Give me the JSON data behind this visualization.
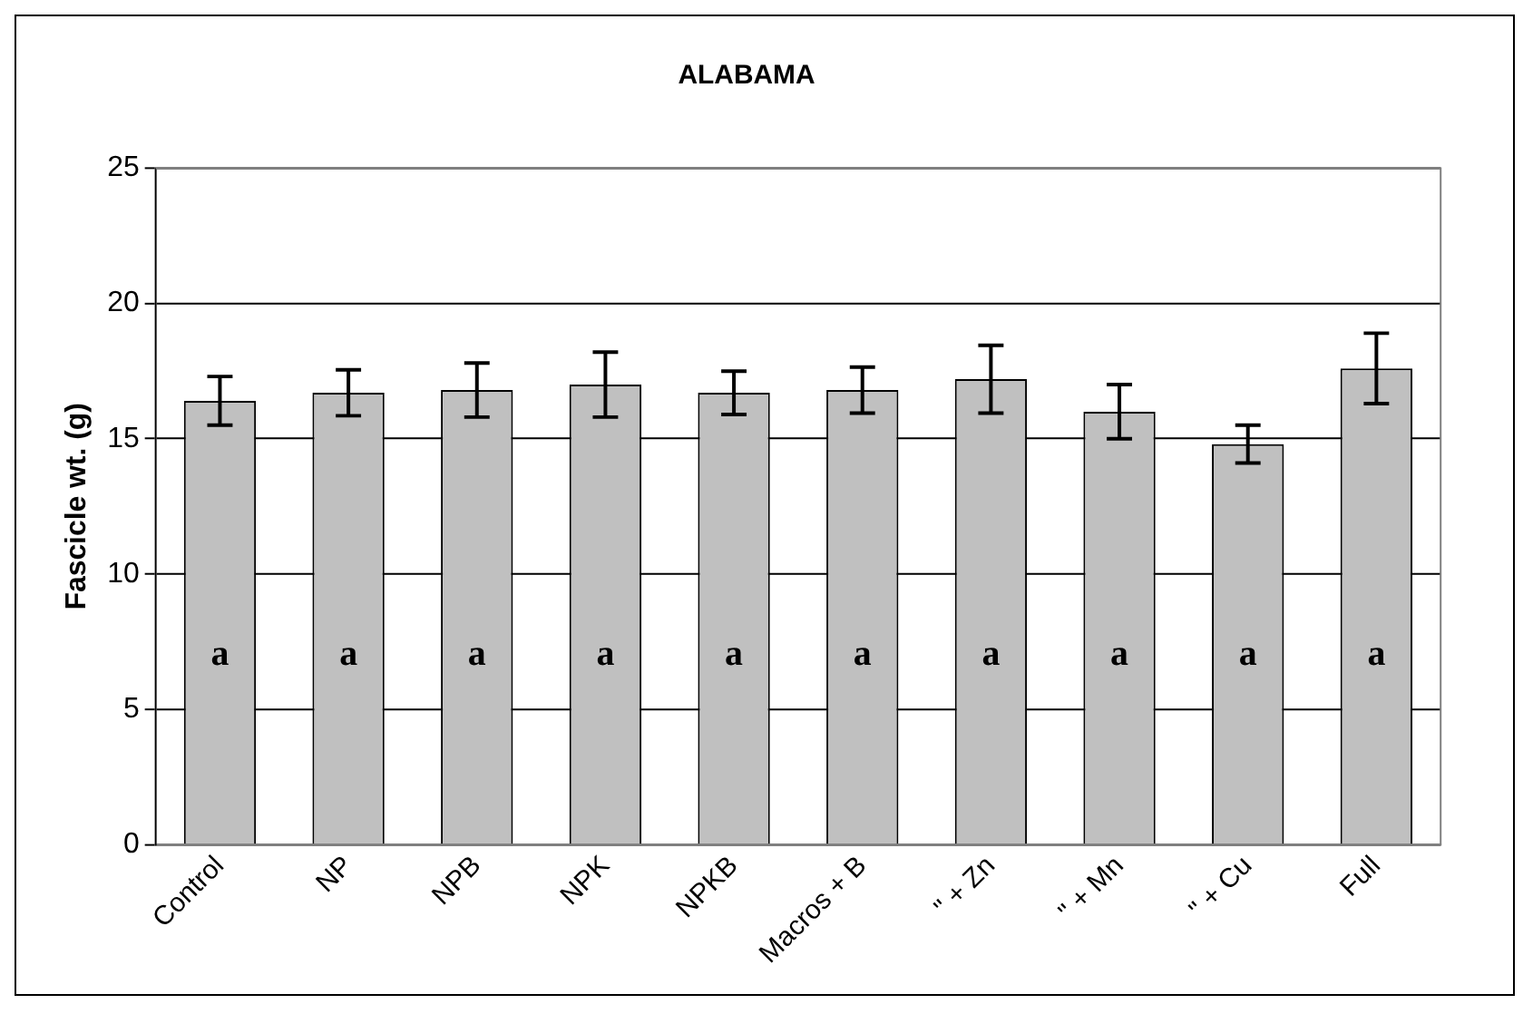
{
  "chart_data": {
    "type": "bar",
    "title": "ALABAMA",
    "ylabel": "Fascicle wt. (g)",
    "categories": [
      "Control",
      "NP",
      "NPB",
      "NPK",
      "NPKB",
      "Macros + B",
      "\" + Zn",
      "\" + Mn",
      "\" + Cu",
      "Full"
    ],
    "values": [
      16.4,
      16.7,
      16.8,
      17.0,
      16.7,
      16.8,
      17.2,
      16.0,
      14.8,
      17.6
    ],
    "errors": [
      0.9,
      0.85,
      1.0,
      1.2,
      0.8,
      0.85,
      1.25,
      1.0,
      0.7,
      1.3
    ],
    "color": "#c0c0c0",
    "ylim": [
      0,
      25
    ],
    "yticks": [
      0,
      5,
      10,
      15,
      20,
      25
    ],
    "grid": "y",
    "legend": false,
    "annotations": [
      "a",
      "a",
      "a",
      "a",
      "a",
      "a",
      "a",
      "a",
      "a",
      "a"
    ]
  }
}
